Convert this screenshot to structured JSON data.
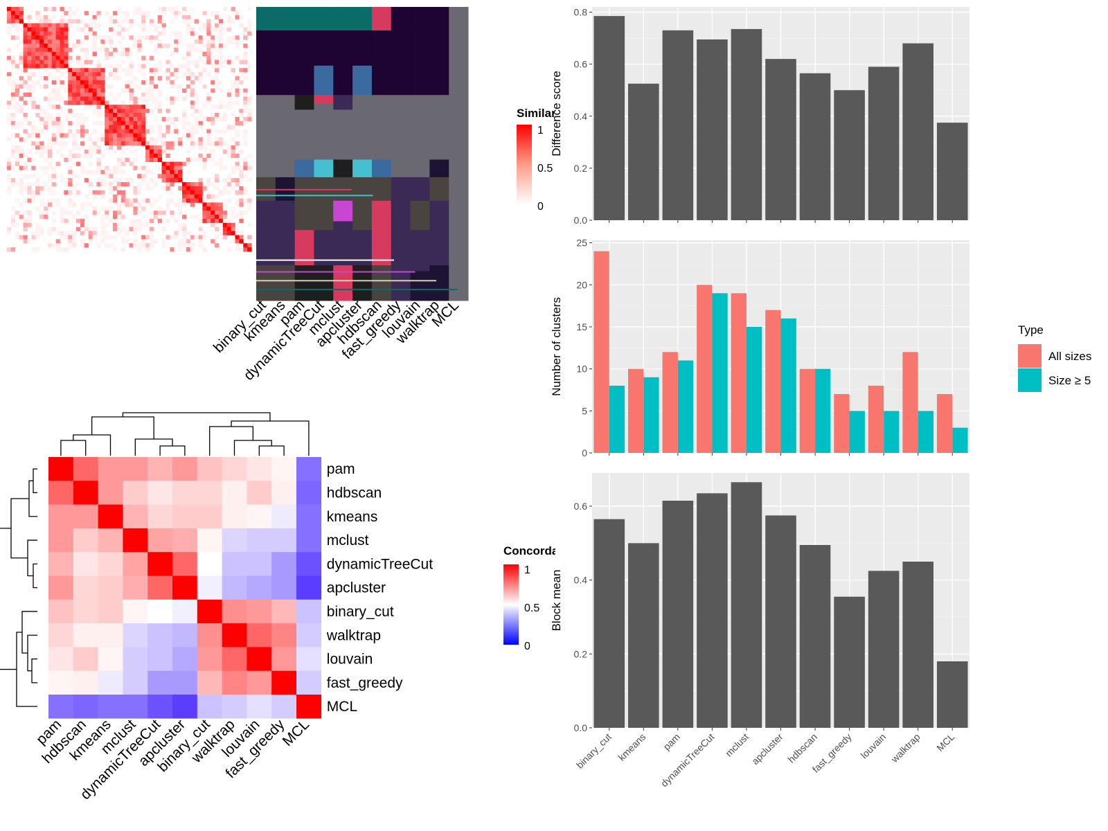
{
  "chart_data": [
    {
      "type": "heatmap",
      "legend_title": "Similarity",
      "legend_ticks": [
        "1",
        "0.5",
        "0"
      ],
      "colors": {
        "high": "#ff0000",
        "low": "#ffffff"
      },
      "column_labels": [
        "binary_cut",
        "kmeans",
        "pam",
        "dynamicTreeCut",
        "mclust",
        "apcluster",
        "hdbscan",
        "fast_greedy",
        "louvain",
        "walktrap",
        "MCL"
      ]
    },
    {
      "type": "heatmap",
      "legend_title": "Concordance",
      "legend_ticks": [
        "1",
        "0.5",
        "0"
      ],
      "colors": {
        "high": "#ff0000",
        "mid": "#ffffff",
        "low": "#0000ff"
      },
      "row_labels": [
        "pam",
        "hdbscan",
        "kmeans",
        "mclust",
        "dynamicTreeCut",
        "apcluster",
        "binary_cut",
        "walktrap",
        "louvain",
        "fast_greedy",
        "MCL"
      ],
      "column_labels": [
        "pam",
        "hdbscan",
        "kmeans",
        "mclust",
        "dynamicTreeCut",
        "apcluster",
        "binary_cut",
        "walktrap",
        "louvain",
        "fast_greedy",
        "MCL"
      ],
      "values": [
        [
          1.0,
          0.8,
          0.7,
          0.7,
          0.65,
          0.7,
          0.62,
          0.58,
          0.55,
          0.52,
          0.22
        ],
        [
          0.8,
          1.0,
          0.7,
          0.6,
          0.55,
          0.58,
          0.58,
          0.53,
          0.6,
          0.53,
          0.2
        ],
        [
          0.7,
          0.7,
          1.0,
          0.65,
          0.58,
          0.6,
          0.6,
          0.53,
          0.52,
          0.46,
          0.22
        ],
        [
          0.7,
          0.6,
          0.65,
          1.0,
          0.68,
          0.66,
          0.52,
          0.42,
          0.4,
          0.4,
          0.22
        ],
        [
          0.65,
          0.55,
          0.58,
          0.68,
          1.0,
          0.8,
          0.5,
          0.38,
          0.38,
          0.3,
          0.16
        ],
        [
          0.7,
          0.58,
          0.6,
          0.66,
          0.8,
          1.0,
          0.47,
          0.36,
          0.33,
          0.3,
          0.12
        ],
        [
          0.62,
          0.58,
          0.6,
          0.52,
          0.5,
          0.47,
          1.0,
          0.72,
          0.7,
          0.64,
          0.38
        ],
        [
          0.58,
          0.53,
          0.53,
          0.42,
          0.38,
          0.36,
          0.72,
          1.0,
          0.8,
          0.74,
          0.4
        ],
        [
          0.55,
          0.6,
          0.52,
          0.4,
          0.38,
          0.33,
          0.7,
          0.8,
          1.0,
          0.7,
          0.44
        ],
        [
          0.52,
          0.53,
          0.46,
          0.4,
          0.3,
          0.3,
          0.64,
          0.74,
          0.7,
          1.0,
          0.4
        ],
        [
          0.22,
          0.2,
          0.22,
          0.22,
          0.16,
          0.12,
          0.38,
          0.4,
          0.44,
          0.4,
          1.0
        ]
      ]
    },
    {
      "type": "bar",
      "categories": [
        "binary_cut",
        "kmeans",
        "pam",
        "dynamicTreeCut",
        "mclust",
        "apcluster",
        "hdbscan",
        "fast_greedy",
        "louvain",
        "walktrap",
        "MCL"
      ],
      "values": [
        0.785,
        0.525,
        0.73,
        0.695,
        0.735,
        0.62,
        0.565,
        0.5,
        0.59,
        0.68,
        0.375
      ],
      "ylabel": "Difference score",
      "ylim": [
        0,
        0.82
      ],
      "yticks": [
        "0.0",
        "0.2",
        "0.4",
        "0.6",
        "0.8"
      ],
      "color": "#595959",
      "grid": true
    },
    {
      "type": "bar",
      "categories": [
        "binary_cut",
        "kmeans",
        "pam",
        "dynamicTreeCut",
        "mclust",
        "apcluster",
        "hdbscan",
        "fast_greedy",
        "louvain",
        "walktrap",
        "MCL"
      ],
      "series": [
        {
          "name": "All sizes",
          "values": [
            24,
            10,
            12,
            20,
            19,
            17,
            10,
            7,
            8,
            12,
            7
          ],
          "color": "#f8766d"
        },
        {
          "name": "Size ≥ 5",
          "values": [
            8,
            9,
            11,
            19,
            15,
            16,
            10,
            5,
            5,
            5,
            3
          ],
          "color": "#00bfc4"
        }
      ],
      "ylabel": "Number of clusters",
      "legend_title": "Type",
      "legend_position": "right",
      "ylim": [
        0,
        25.3
      ],
      "yticks": [
        "0",
        "5",
        "10",
        "15",
        "20",
        "25"
      ],
      "grid": true
    },
    {
      "type": "bar",
      "categories": [
        "binary_cut",
        "kmeans",
        "pam",
        "dynamicTreeCut",
        "mclust",
        "apcluster",
        "hdbscan",
        "fast_greedy",
        "louvain",
        "walktrap",
        "MCL"
      ],
      "values": [
        0.565,
        0.5,
        0.615,
        0.635,
        0.665,
        0.575,
        0.495,
        0.355,
        0.425,
        0.45,
        0.18
      ],
      "ylabel": "Block mean",
      "ylim": [
        0,
        0.69
      ],
      "yticks": [
        "0.0",
        "0.2",
        "0.4",
        "0.6"
      ],
      "color": "#595959",
      "grid": true
    }
  ]
}
